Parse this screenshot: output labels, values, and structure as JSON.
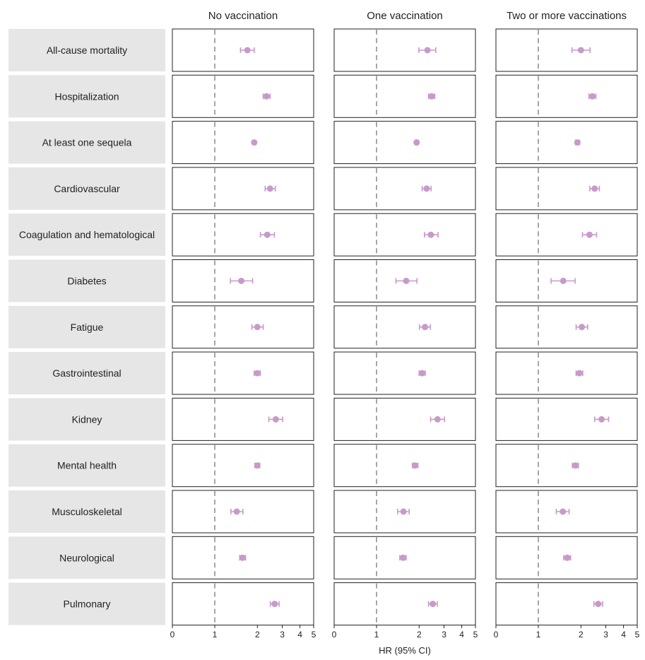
{
  "chart_data": {
    "type": "scatter",
    "columns": [
      "No vaccination",
      "One vaccination",
      "Two or more vaccinations"
    ],
    "rows": [
      "All-cause mortality",
      "Hospitalization",
      "At least one sequela",
      "Cardiovascular",
      "Coagulation and hematological",
      "Diabetes",
      "Fatigue",
      "Gastrointestinal",
      "Kidney",
      "Mental health",
      "Musculoskeletal",
      "Neurological",
      "Pulmonary"
    ],
    "xlabel": "HR (95% CI)",
    "x_scale": "log",
    "xlim": [
      0,
      5
    ],
    "x_ticks": [
      0,
      1,
      2,
      3,
      4,
      5
    ],
    "reference_line": 1,
    "marker_color": "#c79ac9",
    "values": [
      [
        {
          "hr": 1.7,
          "lo": 1.52,
          "hi": 1.9
        },
        {
          "hr": 2.29,
          "lo": 1.99,
          "hi": 2.62
        },
        {
          "hr": 2.0,
          "lo": 1.73,
          "hi": 2.32
        }
      ],
      [
        {
          "hr": 2.32,
          "lo": 2.2,
          "hi": 2.46
        },
        {
          "hr": 2.45,
          "lo": 2.33,
          "hi": 2.58
        },
        {
          "hr": 2.41,
          "lo": 2.28,
          "hi": 2.55
        }
      ],
      [
        {
          "hr": 1.9,
          "lo": 1.86,
          "hi": 1.94
        },
        {
          "hr": 1.92,
          "lo": 1.87,
          "hi": 1.97
        },
        {
          "hr": 1.89,
          "lo": 1.83,
          "hi": 1.95
        }
      ],
      [
        {
          "hr": 2.46,
          "lo": 2.27,
          "hi": 2.68
        },
        {
          "hr": 2.26,
          "lo": 2.1,
          "hi": 2.43
        },
        {
          "hr": 2.5,
          "lo": 2.31,
          "hi": 2.7
        }
      ],
      [
        {
          "hr": 2.35,
          "lo": 2.1,
          "hi": 2.64
        },
        {
          "hr": 2.42,
          "lo": 2.18,
          "hi": 2.72
        },
        {
          "hr": 2.3,
          "lo": 2.05,
          "hi": 2.58
        }
      ],
      [
        {
          "hr": 1.54,
          "lo": 1.29,
          "hi": 1.85
        },
        {
          "hr": 1.62,
          "lo": 1.37,
          "hi": 1.93
        },
        {
          "hr": 1.5,
          "lo": 1.23,
          "hi": 1.82
        }
      ],
      [
        {
          "hr": 2.0,
          "lo": 1.83,
          "hi": 2.2
        },
        {
          "hr": 2.2,
          "lo": 2.01,
          "hi": 2.4
        },
        {
          "hr": 2.03,
          "lo": 1.85,
          "hi": 2.23
        }
      ],
      [
        {
          "hr": 2.0,
          "lo": 1.9,
          "hi": 2.1
        },
        {
          "hr": 2.1,
          "lo": 2.0,
          "hi": 2.21
        },
        {
          "hr": 1.95,
          "lo": 1.85,
          "hi": 2.06
        }
      ],
      [
        {
          "hr": 2.7,
          "lo": 2.41,
          "hi": 3.02
        },
        {
          "hr": 2.7,
          "lo": 2.41,
          "hi": 3.02
        },
        {
          "hr": 2.8,
          "lo": 2.5,
          "hi": 3.14
        }
      ],
      [
        {
          "hr": 2.0,
          "lo": 1.92,
          "hi": 2.08
        },
        {
          "hr": 1.87,
          "lo": 1.79,
          "hi": 1.96
        },
        {
          "hr": 1.83,
          "lo": 1.74,
          "hi": 1.92
        }
      ],
      [
        {
          "hr": 1.43,
          "lo": 1.3,
          "hi": 1.58
        },
        {
          "hr": 1.55,
          "lo": 1.41,
          "hi": 1.7
        },
        {
          "hr": 1.49,
          "lo": 1.34,
          "hi": 1.65
        }
      ],
      [
        {
          "hr": 1.57,
          "lo": 1.5,
          "hi": 1.65
        },
        {
          "hr": 1.54,
          "lo": 1.46,
          "hi": 1.62
        },
        {
          "hr": 1.6,
          "lo": 1.51,
          "hi": 1.69
        }
      ],
      [
        {
          "hr": 2.65,
          "lo": 2.47,
          "hi": 2.85
        },
        {
          "hr": 2.5,
          "lo": 2.33,
          "hi": 2.69
        },
        {
          "hr": 2.65,
          "lo": 2.47,
          "hi": 2.85
        }
      ]
    ]
  }
}
